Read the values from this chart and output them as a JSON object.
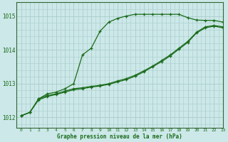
{
  "title": "Graphe pression niveau de la mer (hPa)",
  "background_color": "#cce8e8",
  "grid_color": "#aacccc",
  "line_color": "#1a6b1a",
  "spine_color": "#336633",
  "xlim": [
    -0.5,
    23
  ],
  "ylim": [
    1011.7,
    1015.4
  ],
  "yticks": [
    1012,
    1013,
    1014,
    1015
  ],
  "xticks": [
    0,
    1,
    2,
    3,
    4,
    5,
    6,
    7,
    8,
    9,
    10,
    11,
    12,
    13,
    14,
    15,
    16,
    17,
    18,
    19,
    20,
    21,
    22,
    23
  ],
  "line1_x": [
    0,
    1,
    2,
    3,
    4,
    5,
    6,
    7,
    8,
    9,
    10,
    11,
    12,
    13,
    14,
    15,
    16,
    17,
    18,
    19,
    20,
    21,
    22,
    23
  ],
  "line1_y": [
    1012.05,
    1012.15,
    1012.55,
    1012.7,
    1012.75,
    1012.85,
    1013.0,
    1013.85,
    1014.05,
    1014.55,
    1014.82,
    1014.93,
    1015.0,
    1015.05,
    1015.05,
    1015.05,
    1015.05,
    1015.05,
    1015.05,
    1014.95,
    1014.88,
    1014.87,
    1014.87,
    1014.82
  ],
  "line2_x": [
    0,
    1,
    2,
    3,
    4,
    5,
    6,
    7,
    8,
    9,
    10,
    11,
    12,
    13,
    14,
    15,
    16,
    17,
    18,
    19,
    20,
    21,
    22,
    23
  ],
  "line2_y": [
    1012.05,
    1012.15,
    1012.55,
    1012.65,
    1012.7,
    1012.78,
    1012.85,
    1012.88,
    1012.92,
    1012.95,
    1013.0,
    1013.08,
    1013.15,
    1013.25,
    1013.38,
    1013.52,
    1013.68,
    1013.85,
    1014.05,
    1014.25,
    1014.52,
    1014.68,
    1014.72,
    1014.68
  ],
  "line3_x": [
    0,
    1,
    2,
    3,
    4,
    5,
    6,
    7,
    8,
    9,
    10,
    11,
    12,
    13,
    14,
    15,
    16,
    17,
    18,
    19,
    20,
    21,
    22,
    23
  ],
  "line3_y": [
    1012.05,
    1012.15,
    1012.52,
    1012.62,
    1012.68,
    1012.75,
    1012.82,
    1012.85,
    1012.9,
    1012.93,
    1012.98,
    1013.05,
    1013.12,
    1013.22,
    1013.35,
    1013.5,
    1013.65,
    1013.82,
    1014.02,
    1014.22,
    1014.5,
    1014.65,
    1014.7,
    1014.65
  ]
}
